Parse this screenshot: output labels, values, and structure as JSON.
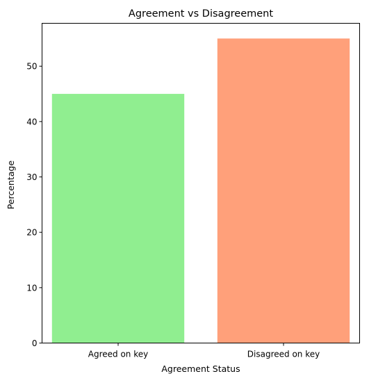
{
  "chart_data": {
    "type": "bar",
    "title": "Agreement vs Disagreement",
    "xlabel": "Agreement Status",
    "ylabel": "Percentage",
    "categories": [
      "Agreed on key",
      "Disagreed on key"
    ],
    "values": [
      45,
      55
    ],
    "colors": [
      "#90ee90",
      "#ffa07a"
    ],
    "ylim": [
      0,
      57.75
    ],
    "yticks": [
      0,
      10,
      20,
      30,
      40,
      50
    ],
    "grid": false,
    "legend": "none"
  }
}
